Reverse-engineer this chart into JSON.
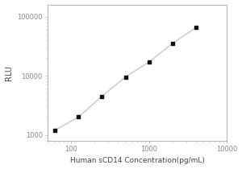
{
  "x_values": [
    62.5,
    125,
    250,
    500,
    1000,
    2000,
    4000
  ],
  "y_values": [
    1200,
    2000,
    4500,
    9500,
    17000,
    35000,
    65000
  ],
  "marker": "s",
  "marker_color": "#111111",
  "marker_size": 3.5,
  "line_color": "#c8c8c8",
  "line_width": 1.0,
  "xlabel": "Human sCD14 Concentration(pg/mL)",
  "ylabel": "RLU",
  "xlim": [
    50,
    10000
  ],
  "ylim": [
    800,
    160000
  ],
  "xticks": [
    100,
    1000,
    10000
  ],
  "yticks": [
    1000,
    10000,
    100000
  ],
  "xtick_labels": [
    "100",
    "1000",
    "10000"
  ],
  "ytick_labels": [
    "1000",
    "10000",
    "100000"
  ],
  "background_color": "#ffffff",
  "xlabel_fontsize": 6.5,
  "ylabel_fontsize": 7,
  "tick_fontsize": 6,
  "spine_color": "#aaaaaa",
  "tick_color": "#888888"
}
